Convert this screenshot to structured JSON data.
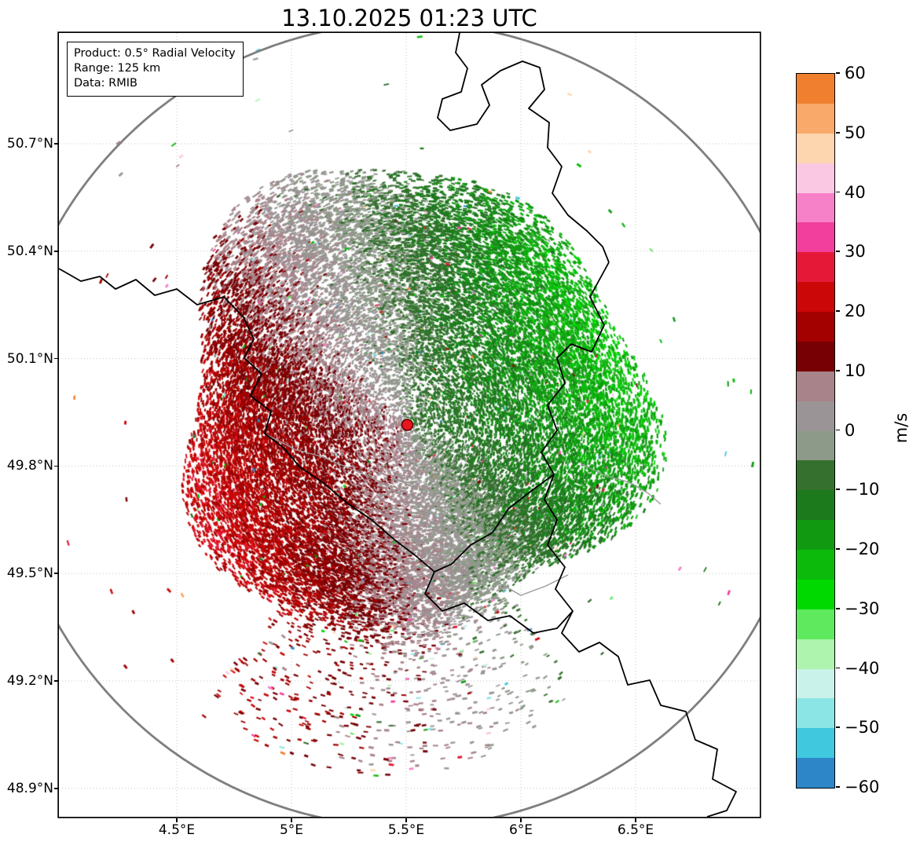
{
  "title": "13.10.2025 01:23 UTC",
  "info_box": {
    "product": "Product: 0.5° Radial Velocity",
    "range": "Range: 125 km",
    "data": "Data: RMIB"
  },
  "chart_data": {
    "type": "heatmap",
    "subtype": "doppler-radar-radial-velocity-ppi-map",
    "title": "13.10.2025 01:23 UTC",
    "annotations": [
      "Product: 0.5° Radial Velocity",
      "Range: 125 km",
      "Data: RMIB"
    ],
    "x_axis": {
      "ticks": [
        "4.5°E",
        "5°E",
        "5.5°E",
        "6°E",
        "6.5°E"
      ],
      "tick_values": [
        4.5,
        5.0,
        5.5,
        6.0,
        6.5
      ],
      "range_deg_e": [
        3.99,
        7.04
      ],
      "grid": "dotted"
    },
    "y_axis": {
      "ticks": [
        "50.7°N",
        "50.4°N",
        "50.1°N",
        "49.8°N",
        "49.5°N",
        "49.2°N",
        "48.9°N"
      ],
      "tick_values": [
        50.7,
        50.4,
        50.1,
        49.8,
        49.5,
        49.2,
        48.9
      ],
      "range_deg_n": [
        48.81,
        51.01
      ],
      "grid": "dotted"
    },
    "colorbar": {
      "unit_label": "m/s",
      "min": -60,
      "max": 60,
      "tick_labels": [
        "60",
        "50",
        "40",
        "30",
        "20",
        "10",
        "0",
        "−10",
        "−20",
        "−30",
        "−40",
        "−50",
        "−60"
      ],
      "tick_values": [
        60,
        50,
        40,
        30,
        20,
        10,
        0,
        -10,
        -20,
        -30,
        -40,
        -50,
        -60
      ],
      "segment_size": 5,
      "segment_colors_top_to_bottom": [
        "#f08030",
        "#f9a96a",
        "#fdd5ae",
        "#fac8e2",
        "#f781c8",
        "#f23e9c",
        "#e51937",
        "#cb0707",
        "#a30000",
        "#760004",
        "#a8838a",
        "#9b9496",
        "#8e9a89",
        "#35702f",
        "#1c7a1c",
        "#119a11",
        "#0cba0c",
        "#00d900",
        "#5fe95f",
        "#aef3ae",
        "#c9f2ea",
        "#8ce5e5",
        "#3fc8de",
        "#2d86c8"
      ]
    },
    "range_ring": {
      "radius_km": 125,
      "color": "#7f7f7f"
    },
    "radar_site": {
      "lon_deg_e": 5.505,
      "lat_deg_n": 49.915,
      "marker_color": "#e8161e"
    },
    "velocity_field": {
      "description": "Speckled radial-velocity echoes around the radar: positive velocities (red, ~+10 to +25 m/s, away from radar) west and southwest, negative velocities (green, ~−10 to −25 m/s, toward radar) north through east, near-zero grey band running NNW–SSE through the radar site; scattered multicoloured noise pixels and a sparse echo tail to the south.",
      "approx_peak_positive_ms": 24,
      "approx_peak_negative_ms": -24,
      "echo_radius_km_approx": 78,
      "sparse_echo_tail": "south-southeast out to ~110 km"
    },
    "map": {
      "borders": [
        "M 510 0 L 505 25 L 520 45 L 512 75 L 488 84 L 482 108 L 498 124 L 532 116 L 548 92 L 538 66 L 562 48 L 590 36 L 612 44 L 618 72 L 598 96 L 624 114 L 622 146 L 640 170 L 628 204 L 648 232 L 672 252 L 692 272 L 700 292",
        "M 700 292 L 676 336 L 694 372 L 678 406 L 652 396 L 634 414 L 644 446 L 622 474 L 634 506 L 614 534 L 630 562 L 618 594 L 634 620 L 622 652 L 644 680 L 632 708 L 654 736 L 640 764 L 662 788 L 688 776 L 712 794 L 724 830 L 752 824 L 766 856 L 798 864 L 810 900 L 838 912 L 832 950 L 862 966 L 850 990 L 825 998",
        "M 0 300 L 28 316 L 52 310 L 72 326 L 98 314 L 122 334 L 150 326 L 176 346 L 210 336 L 235 362 L 248 390 L 236 414 L 258 434 L 244 462 L 270 482 L 262 510 L 286 528 L 306 552 L 338 574 L 366 598 L 398 620 L 428 646 L 452 664 L 478 686 L 466 714 L 488 736 L 516 726 L 546 748 L 574 742 L 604 764 L 634 758 L 654 736",
        "M 630 562 L 600 584 L 572 606 L 552 636 L 524 652 L 500 676 L 478 686"
      ],
      "rivers": [
        "M 262 510 L 300 530 L 336 540 L 374 556 L 410 572 L 444 592 L 478 614 L 506 638 L 530 666 L 556 698 L 588 716 L 620 704 L 648 690",
        "M 664 548 L 696 564 L 726 572 L 750 586 L 766 600"
      ]
    }
  }
}
